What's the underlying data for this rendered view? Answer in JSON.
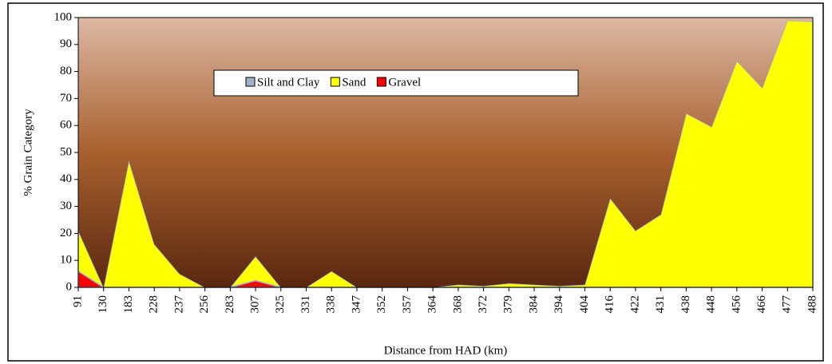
{
  "chart_data": {
    "type": "stacked_area",
    "x_label": "Distance from HAD (km)",
    "y_label": "% Grain Category",
    "categories": [
      "91",
      "130",
      "183",
      "228",
      "237",
      "256",
      "283",
      "307",
      "325",
      "331",
      "338",
      "347",
      "352",
      "357",
      "364",
      "368",
      "372",
      "379",
      "384",
      "394",
      "404",
      "416",
      "422",
      "431",
      "438",
      "448",
      "456",
      "466",
      "477",
      "488"
    ],
    "series": [
      {
        "name": "Silt and Clay",
        "color": "#a8602e",
        "values": [
          79,
          100,
          53,
          84,
          95,
          100,
          100,
          88.5,
          100,
          100,
          94,
          100,
          100,
          100,
          100,
          99,
          99.5,
          98.5,
          99,
          99.5,
          99,
          67,
          79,
          73,
          35.5,
          40.5,
          16,
          26,
          1,
          1.5
        ]
      },
      {
        "name": "Sand",
        "color": "#ffff00",
        "values": [
          15,
          0,
          47,
          16,
          5,
          0,
          0,
          9,
          0,
          0,
          6,
          0,
          0,
          0,
          0,
          1,
          0.5,
          1.5,
          1,
          0.5,
          1,
          33,
          21,
          27,
          64.5,
          59.5,
          84,
          74,
          99,
          98.5
        ]
      },
      {
        "name": "Gravel",
        "color": "#ff0000",
        "values": [
          6,
          0,
          0,
          0,
          0,
          0,
          0,
          2.5,
          0,
          0,
          0,
          0,
          0,
          0,
          0,
          0,
          0,
          0,
          0,
          0,
          0,
          0,
          0,
          0,
          0,
          0,
          0,
          0,
          0,
          0
        ]
      }
    ],
    "ylim": [
      0,
      100
    ],
    "yticks": [
      0,
      10,
      20,
      30,
      40,
      50,
      60,
      70,
      80,
      90,
      100
    ]
  }
}
